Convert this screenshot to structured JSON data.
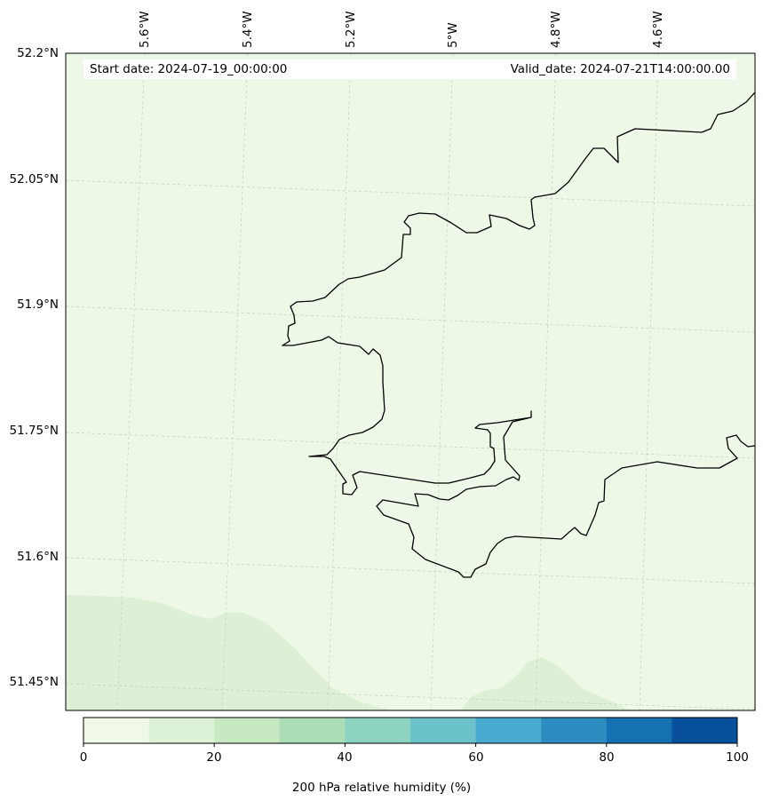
{
  "map": {
    "start_date": "Start date: 2024-07-19_00:00:00",
    "valid_date": "Valid_date: 2024-07-21T14:00:00.00",
    "lat_labels": [
      "52.2°N",
      "52.05°N",
      "51.9°N",
      "51.75°N",
      "51.6°N",
      "51.45°N"
    ],
    "lon_labels": [
      "5.6°W",
      "5.4°W",
      "5.2°W",
      "5°W",
      "4.8°W",
      "4.6°W"
    ],
    "background_color": "#eef8e6",
    "field_color": "#ddf0d6",
    "coastline_color": "#000000"
  },
  "colorbar": {
    "label": "200 hPa relative humidity (%)",
    "tick_labels": [
      "0",
      "20",
      "40",
      "60",
      "80",
      "100"
    ],
    "colors": [
      "#f0f9e8",
      "#ddf1d7",
      "#c6e9c1",
      "#acdeb6",
      "#8dd3c0",
      "#6cc2cb",
      "#4aabd1",
      "#2d8dc1",
      "#1671b0",
      "#08509b"
    ]
  }
}
